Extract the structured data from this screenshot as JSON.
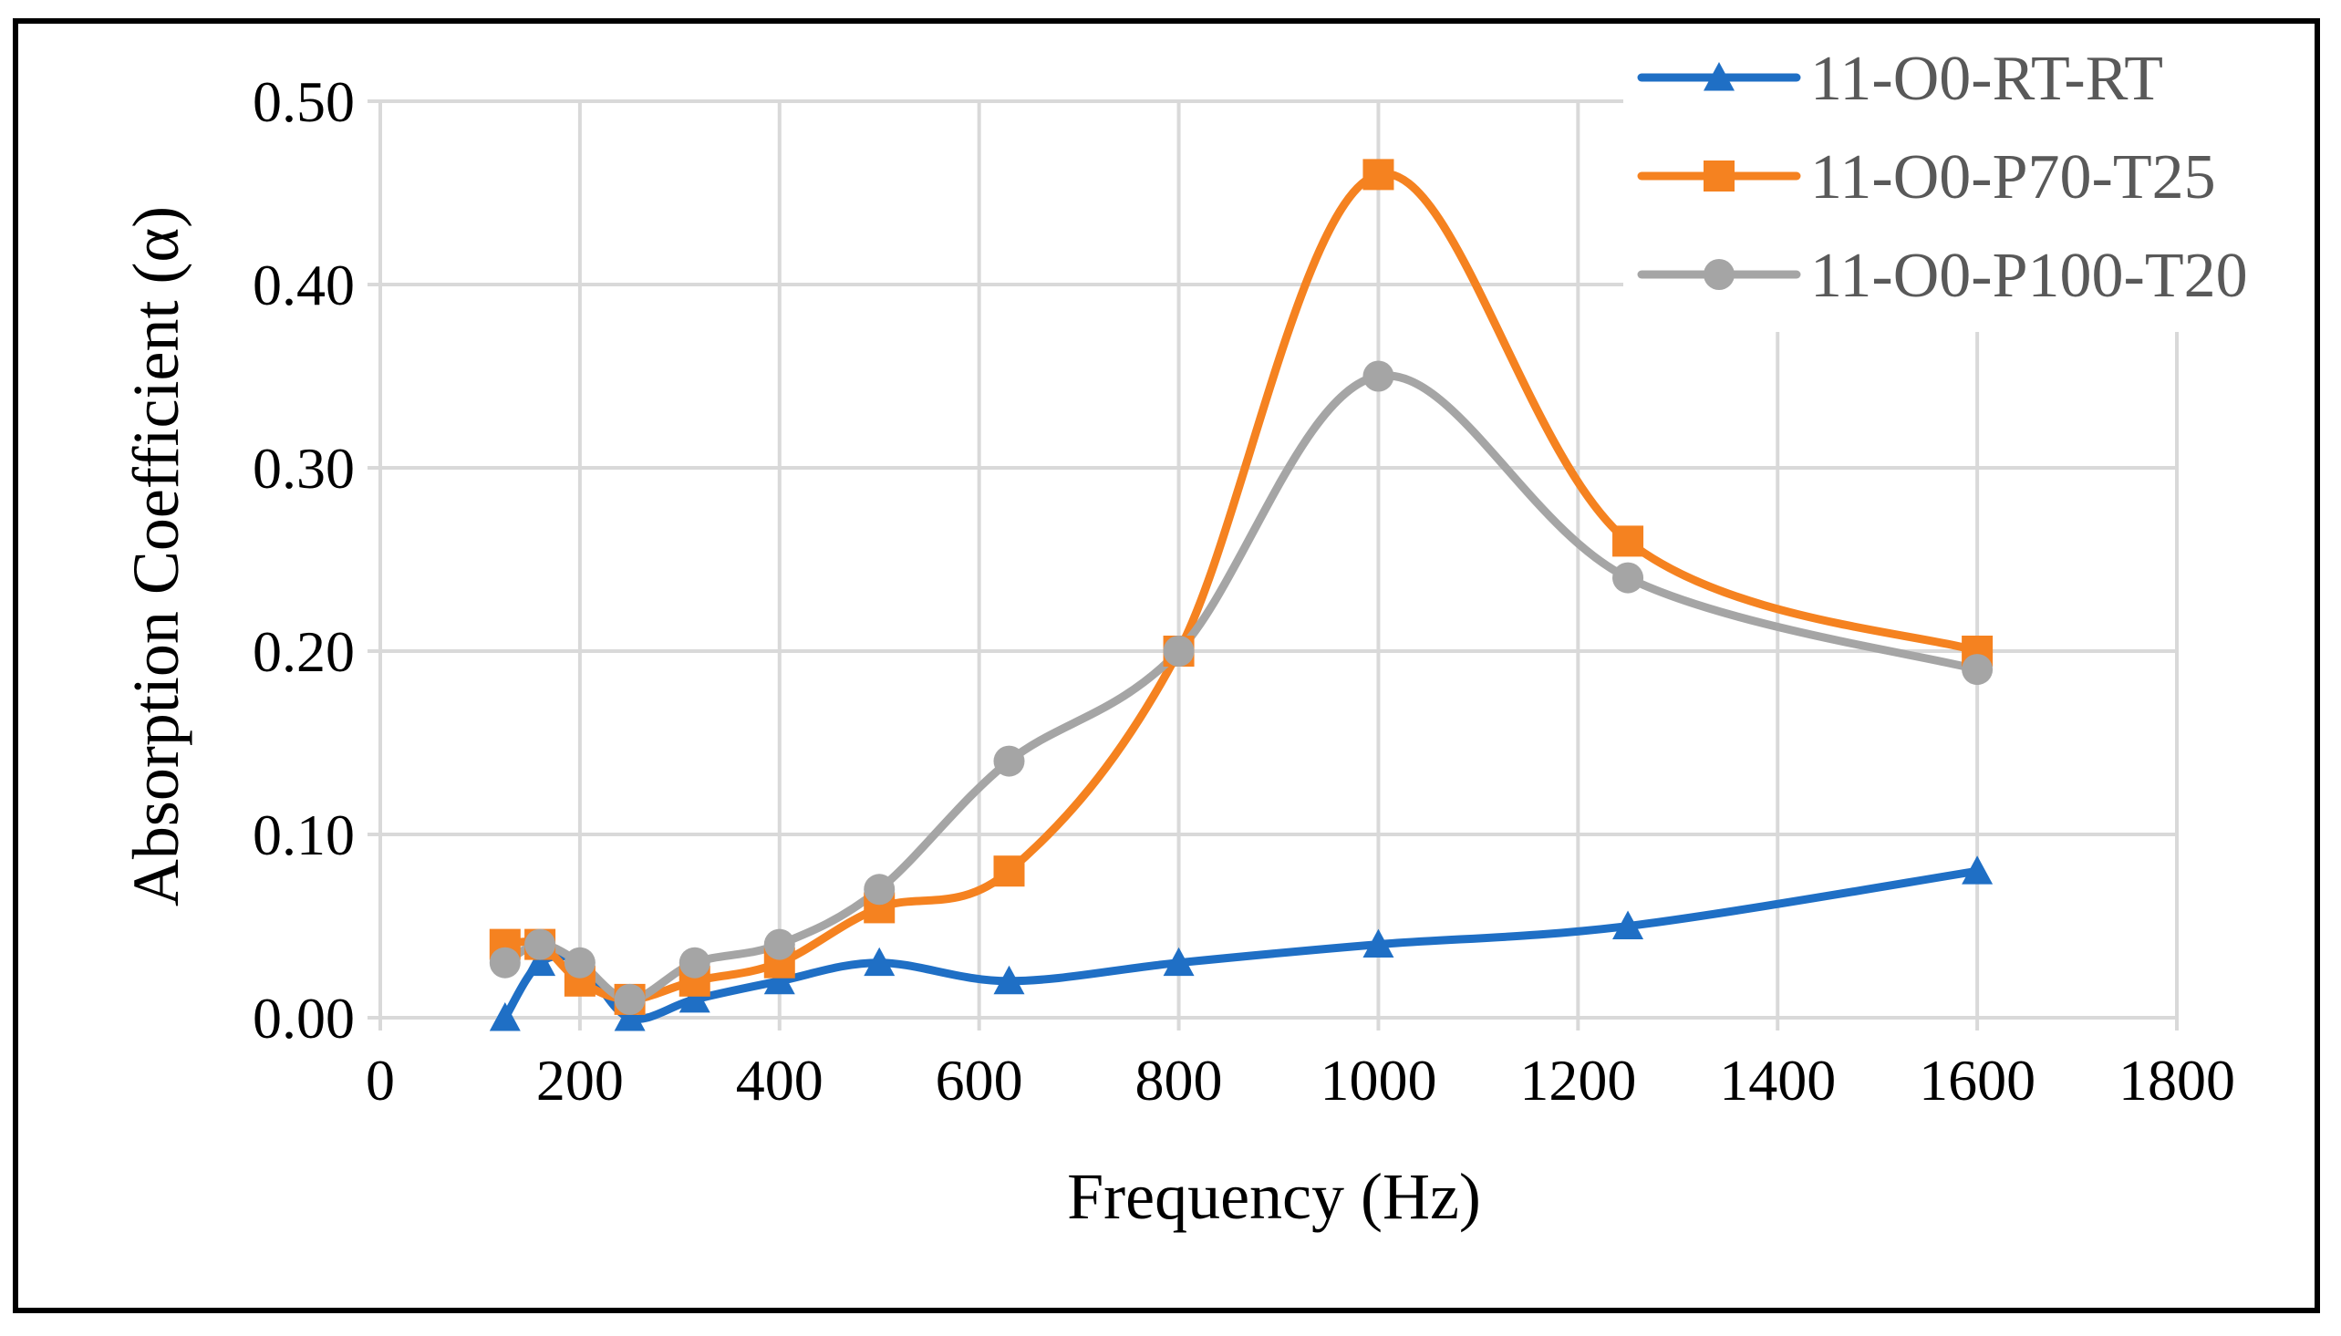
{
  "chart_data": {
    "type": "line",
    "title": "",
    "xlabel": "Frequency (Hz)",
    "ylabel": "Absorption Coefficient (α)",
    "xlim": [
      0,
      1800
    ],
    "ylim": [
      0,
      0.5
    ],
    "xticks": [
      0,
      200,
      400,
      600,
      800,
      1000,
      1200,
      1400,
      1600,
      1800
    ],
    "xtick_labels": [
      "0",
      "200",
      "400",
      "600",
      "800",
      "1000",
      "1200",
      "1400",
      "1600",
      "1800"
    ],
    "yticks": [
      0,
      0.1,
      0.2,
      0.3,
      0.4,
      0.5
    ],
    "ytick_labels": [
      "0.00",
      "0.10",
      "0.20",
      "0.30",
      "0.40",
      "0.50"
    ],
    "grid": true,
    "smooth": true,
    "legend_position": "top-right",
    "x": [
      125,
      160,
      200,
      250,
      315,
      400,
      500,
      630,
      800,
      1000,
      1250,
      1600
    ],
    "series": [
      {
        "name": "11-O0-RT-RT",
        "color": "#1F6FC5",
        "marker": "triangle",
        "values": [
          0.0,
          0.03,
          0.03,
          0.0,
          0.01,
          0.02,
          0.03,
          0.02,
          0.03,
          0.04,
          0.05,
          0.08
        ]
      },
      {
        "name": "11-O0-P70-T25",
        "color": "#F58220",
        "marker": "square",
        "values": [
          0.04,
          0.04,
          0.02,
          0.01,
          0.02,
          0.03,
          0.06,
          0.08,
          0.2,
          0.46,
          0.26,
          0.2
        ]
      },
      {
        "name": "11-O0-P100-T20",
        "color": "#A5A5A5",
        "marker": "circle",
        "values": [
          0.03,
          0.04,
          0.03,
          0.01,
          0.03,
          0.04,
          0.07,
          0.14,
          0.2,
          0.35,
          0.24,
          0.19
        ]
      }
    ]
  }
}
